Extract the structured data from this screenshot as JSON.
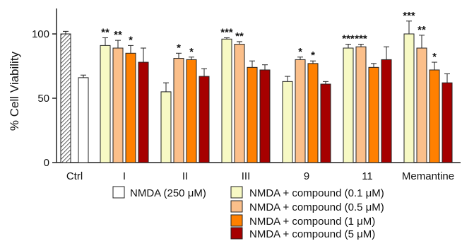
{
  "chart_data": {
    "type": "bar",
    "ylabel": "% Cell Viability",
    "ylim": [
      0,
      120
    ],
    "yticks": [
      0,
      50,
      100
    ],
    "controls": [
      {
        "label": "Ctrl",
        "value": 100,
        "error": 2,
        "color": "#ffffff",
        "pattern": "hatched"
      },
      {
        "label": "",
        "value": 66,
        "error": 2,
        "color": "#ffffff",
        "pattern": "solid"
      }
    ],
    "categories": [
      "I",
      "II",
      "III",
      "9",
      "11",
      "Memantine"
    ],
    "series": [
      {
        "name": "NMDA + compound (0.1 μM)",
        "color": "#f7f9c4",
        "values": [
          91,
          55,
          96,
          63,
          89,
          100
        ],
        "errors": [
          6,
          7,
          1,
          4,
          3,
          10
        ],
        "significance": [
          "**",
          "",
          "***",
          "",
          "***",
          "***"
        ]
      },
      {
        "name": "NMDA + compound (0.5 μM)",
        "color": "#fbbf8a",
        "values": [
          89,
          81,
          92,
          80,
          90,
          89
        ],
        "errors": [
          6,
          4,
          2,
          2,
          2,
          10
        ],
        "significance": [
          "**",
          "*",
          "**",
          "*",
          "***",
          "**"
        ]
      },
      {
        "name": "NMDA + compound (1 μM)",
        "color": "#ff8000",
        "values": [
          85,
          80,
          74,
          77,
          74,
          72
        ],
        "errors": [
          6,
          2,
          5,
          2,
          3,
          6
        ],
        "significance": [
          "*",
          "*",
          "",
          "*",
          "",
          "*"
        ]
      },
      {
        "name": "NMDA + compound (5 μM)",
        "color": "#a60000",
        "values": [
          78,
          67,
          72,
          61,
          80,
          62
        ],
        "errors": [
          11,
          6,
          4,
          2,
          10,
          7
        ],
        "significance": [
          "",
          "",
          "",
          "",
          "",
          ""
        ]
      }
    ],
    "legend": {
      "control_item": "NMDA (250 μM)",
      "placement": "bottom"
    }
  }
}
